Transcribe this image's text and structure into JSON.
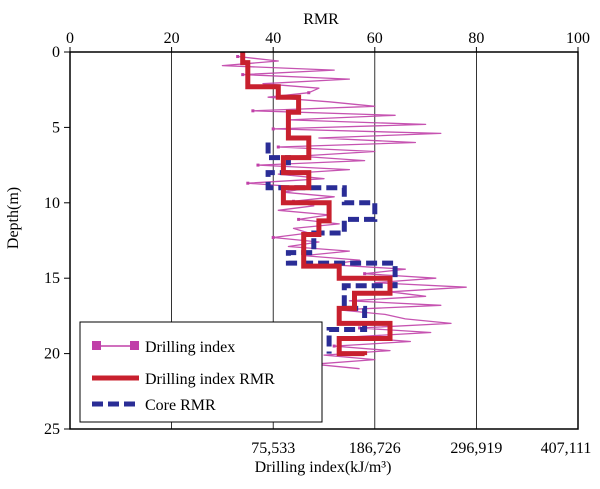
{
  "chart_data": {
    "type": "line",
    "top_axis": {
      "title": "RMR",
      "range": [
        0,
        100
      ],
      "ticks": [
        0,
        20,
        40,
        60,
        80,
        100
      ],
      "tick_labels": [
        "0",
        "20",
        "40",
        "60",
        "80",
        "100"
      ]
    },
    "y_axis": {
      "title": "Depth(m)",
      "range": [
        0,
        25
      ],
      "inverted": true,
      "ticks": [
        0,
        5,
        10,
        15,
        20,
        25
      ],
      "tick_labels": [
        "0",
        "5",
        "10",
        "15",
        "20",
        "25"
      ]
    },
    "bottom_axis": {
      "title": "Drilling index(kJ/m³)",
      "ticks_rmr_position": [
        40,
        60,
        80,
        100
      ],
      "tick_labels": [
        "75,533",
        "186,726",
        "296,919",
        "407,111"
      ]
    },
    "grid": "vertical",
    "legend_position": "bottom-left",
    "colors": {
      "drilling_index": "#c040a8",
      "drilling_index_rmr": "#c8202e",
      "core_rmr": "#2a2d96"
    },
    "series": [
      {
        "name": "Drilling index",
        "style": "thin-line-with-square-markers",
        "x_units": "RMR-equivalent axis position",
        "y": [
          0.3,
          0.6,
          0.9,
          1.2,
          1.5,
          1.8,
          2.1,
          2.4,
          2.7,
          3.0,
          3.3,
          3.6,
          3.9,
          4.2,
          4.5,
          4.8,
          5.1,
          5.4,
          5.7,
          6.0,
          6.3,
          6.6,
          6.9,
          7.2,
          7.5,
          7.8,
          8.1,
          8.4,
          8.7,
          9.0,
          9.3,
          9.6,
          9.9,
          10.2,
          10.5,
          10.8,
          11.1,
          11.4,
          11.7,
          12.0,
          12.3,
          12.6,
          12.9,
          13.2,
          13.5,
          13.8,
          14.1,
          14.4,
          14.7,
          15.0,
          15.3,
          15.6,
          15.9,
          16.2,
          16.5,
          16.8,
          17.1,
          17.4,
          17.7,
          18.0,
          18.3,
          18.6,
          18.9,
          19.2,
          19.5,
          19.8,
          20.1,
          20.4,
          20.7,
          21.0
        ],
        "x": [
          33,
          41,
          30,
          52,
          34,
          55,
          38,
          49,
          47,
          39,
          51,
          60,
          36,
          64,
          43,
          70,
          40,
          73,
          49,
          68,
          41,
          60,
          45,
          58,
          37,
          55,
          41,
          50,
          35,
          47,
          42,
          52,
          44,
          48,
          41,
          51,
          45,
          53,
          44,
          47,
          40,
          49,
          43,
          55,
          46,
          57,
          51,
          66,
          58,
          72,
          60,
          78,
          63,
          70,
          55,
          73,
          53,
          62,
          66,
          75,
          57,
          71,
          55,
          67,
          52,
          63,
          50,
          60,
          48,
          57
        ]
      },
      {
        "name": "Drilling index RMR",
        "style": "thick-step-line",
        "points": [
          [
            34,
            0
          ],
          [
            34,
            0.7
          ],
          [
            35,
            0.7
          ],
          [
            35,
            2.3
          ],
          [
            41,
            2.3
          ],
          [
            41,
            3
          ],
          [
            45,
            3
          ],
          [
            45,
            4
          ],
          [
            43,
            4
          ],
          [
            43,
            5.7
          ],
          [
            47,
            5.7
          ],
          [
            47,
            7
          ],
          [
            42,
            7
          ],
          [
            42,
            8
          ],
          [
            47,
            8
          ],
          [
            47,
            9
          ],
          [
            42,
            9
          ],
          [
            42,
            10
          ],
          [
            51,
            10
          ],
          [
            51,
            11.2
          ],
          [
            49,
            11.2
          ],
          [
            49,
            12.1
          ],
          [
            46,
            12.1
          ],
          [
            46,
            13.4
          ],
          [
            46,
            13.4
          ],
          [
            46,
            14.2
          ],
          [
            53,
            14.2
          ],
          [
            53,
            15
          ],
          [
            63,
            15
          ],
          [
            63,
            16
          ],
          [
            56,
            16
          ],
          [
            56,
            17
          ],
          [
            53,
            17
          ],
          [
            53,
            18
          ],
          [
            63,
            18
          ],
          [
            63,
            19
          ],
          [
            53,
            19
          ],
          [
            53,
            20
          ],
          [
            58,
            20
          ],
          [
            58,
            20.1
          ]
        ]
      },
      {
        "name": "Core RMR",
        "style": "thick-dashed-step-line",
        "points": [
          [
            39,
            6
          ],
          [
            39,
            7
          ],
          [
            43,
            7
          ],
          [
            43,
            8
          ],
          [
            39,
            8
          ],
          [
            39,
            9
          ],
          [
            54,
            9
          ],
          [
            54,
            10
          ],
          [
            60,
            10
          ],
          [
            60,
            11.1
          ],
          [
            54,
            11.1
          ],
          [
            54,
            12
          ],
          [
            48,
            12
          ],
          [
            48,
            13.3
          ],
          [
            43,
            13.3
          ],
          [
            43,
            14
          ],
          [
            64,
            14
          ],
          [
            64,
            15.5
          ],
          [
            54,
            15.5
          ],
          [
            54,
            17
          ],
          [
            58,
            17
          ],
          [
            58,
            18.4
          ],
          [
            51,
            18.4
          ],
          [
            51,
            20
          ]
        ]
      }
    ]
  }
}
